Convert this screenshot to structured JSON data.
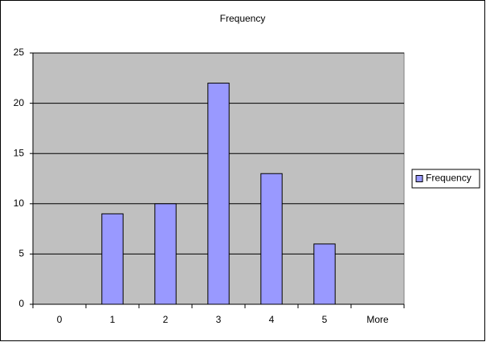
{
  "chart_data": {
    "type": "bar",
    "title": "Frequency",
    "categories": [
      "0",
      "1",
      "2",
      "3",
      "4",
      "5",
      "More"
    ],
    "series": [
      {
        "name": "Frequency",
        "color": "#9999ff",
        "values": [
          0,
          9,
          10,
          22,
          13,
          6,
          0
        ]
      }
    ],
    "ylim": [
      0,
      25
    ],
    "yticks": [
      0,
      5,
      10,
      15,
      20,
      25
    ],
    "grid": true,
    "legend": "right"
  }
}
